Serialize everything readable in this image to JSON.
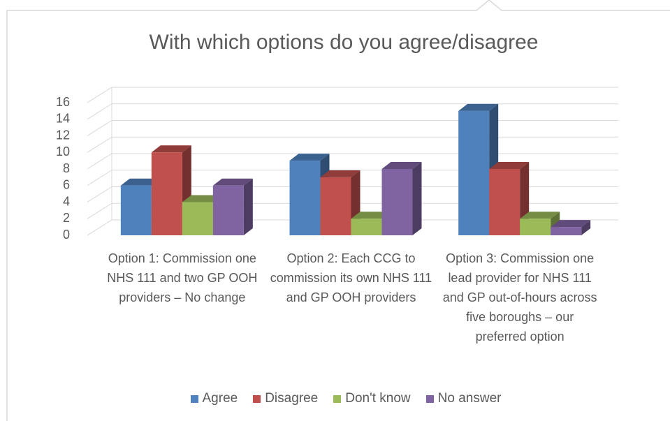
{
  "chart_data": {
    "type": "bar3d",
    "title": "With which options do you agree/disagree",
    "categories": [
      "Option 1: Commission one NHS 111 and  two GP OOH providers – No change",
      "Option 2: Each CCG to commission its own NHS 111 and GP OOH providers",
      "Option 3: Commission one lead provider for NHS 111 and GP out-of-hours across five boroughs – our preferred option"
    ],
    "series": [
      {
        "name": "Agree",
        "color": "#4f81bd",
        "values": [
          6,
          9,
          15
        ]
      },
      {
        "name": "Disagree",
        "color": "#c0504d",
        "values": [
          10,
          7,
          8
        ]
      },
      {
        "name": "Don't know",
        "color": "#9bbb59",
        "values": [
          4,
          2,
          2
        ]
      },
      {
        "name": "No answer",
        "color": "#8064a2",
        "values": [
          6,
          8,
          1
        ]
      }
    ],
    "ylim": [
      0,
      16
    ],
    "yticks": [
      0,
      2,
      4,
      6,
      8,
      10,
      12,
      14,
      16
    ],
    "grid": true,
    "legend": "bottom"
  }
}
